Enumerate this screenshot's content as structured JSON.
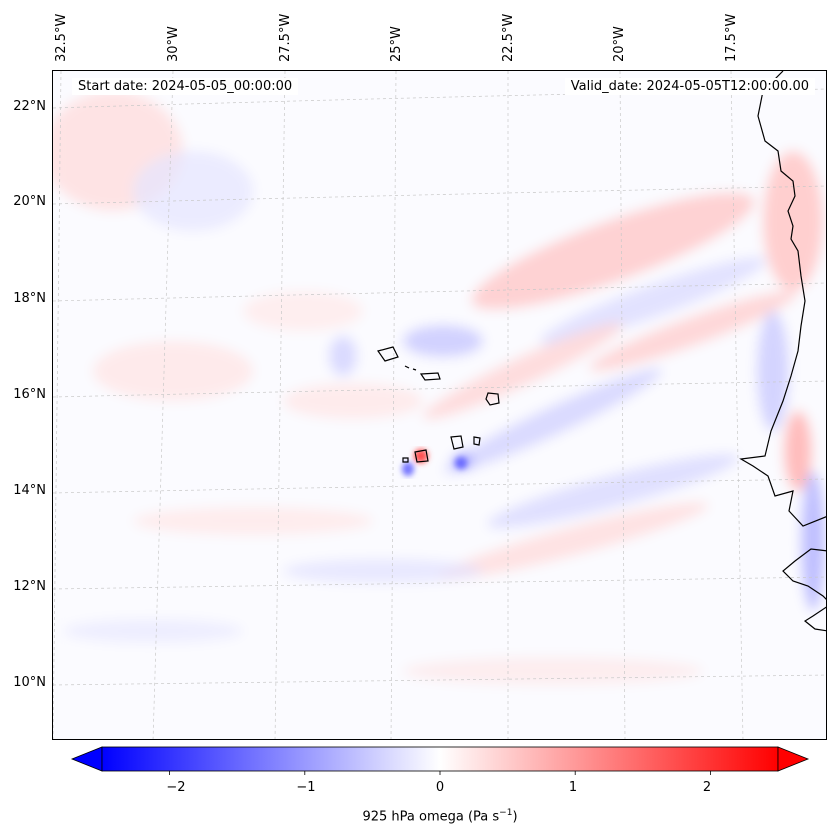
{
  "map": {
    "header": {
      "start_date": "Start date: 2024-05-05_00:00:00",
      "valid_date": "Valid_date: 2024-05-05T12:00:00.00"
    },
    "lon_labels": [
      "32.5°W",
      "30°W",
      "27.5°W",
      "25°W",
      "22.5°W",
      "20°W",
      "17.5°W"
    ],
    "lat_labels": [
      "22°N",
      "20°N",
      "18°N",
      "16°N",
      "14°N",
      "12°N",
      "10°N"
    ],
    "colorbar": {
      "ticks": [
        "−2",
        "−1",
        "0",
        "1",
        "2"
      ],
      "tick_values": [
        -2,
        -1,
        0,
        1,
        2
      ],
      "range": [
        -2.5,
        2.5
      ],
      "label_prefix": "925 hPa omega (Pa s",
      "label_exp": "−1",
      "label_suffix": ")",
      "neg_color": "#0000ff",
      "pos_color": "#ff0000",
      "mid_color": "#ffffff"
    }
  }
}
